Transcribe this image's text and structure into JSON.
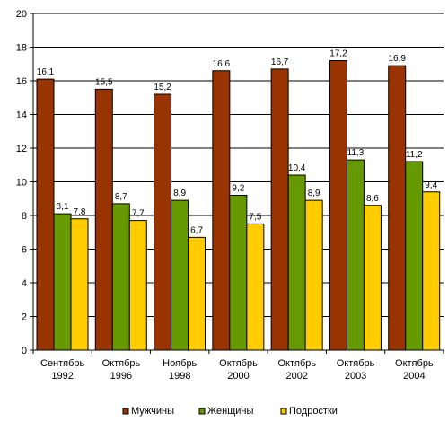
{
  "chart_data": {
    "type": "bar",
    "title": "",
    "xlabel": "",
    "ylabel": "",
    "ylim": [
      0,
      20
    ],
    "ytick_step": 2,
    "yticks": [
      "0",
      "2",
      "4",
      "6",
      "8",
      "10",
      "12",
      "14",
      "16",
      "18",
      "20"
    ],
    "grid": true,
    "legend_position": "bottom",
    "categories": [
      [
        "Сентябрь",
        "1992"
      ],
      [
        "Октябрь",
        "1996"
      ],
      [
        "Ноябрь",
        "1998"
      ],
      [
        "Октябрь",
        "2000"
      ],
      [
        "Октябрь",
        "2002"
      ],
      [
        "Октябрь",
        "2003"
      ],
      [
        "Октябрь",
        "2004"
      ]
    ],
    "series": [
      {
        "name": "Мужчины",
        "color": "#993300",
        "values": [
          16.1,
          15.5,
          15.2,
          16.6,
          16.7,
          17.2,
          16.9
        ],
        "labels": [
          "16,1",
          "15,5",
          "15,2",
          "16,6",
          "16,7",
          "17,2",
          "16,9"
        ]
      },
      {
        "name": "Женщины",
        "color": "#669900",
        "values": [
          8.1,
          8.7,
          8.9,
          9.2,
          10.4,
          11.3,
          11.2
        ],
        "labels": [
          "8,1",
          "8,7",
          "8,9",
          "9,2",
          "10,4",
          "11,3",
          "11,2"
        ]
      },
      {
        "name": "Подростки",
        "color": "#ffcc00",
        "values": [
          7.8,
          7.7,
          6.7,
          7.5,
          8.9,
          8.6,
          9.4
        ],
        "labels": [
          "7,8",
          "7,7",
          "6,7",
          "7,5",
          "8,9",
          "8,6",
          "9,4"
        ]
      }
    ]
  }
}
